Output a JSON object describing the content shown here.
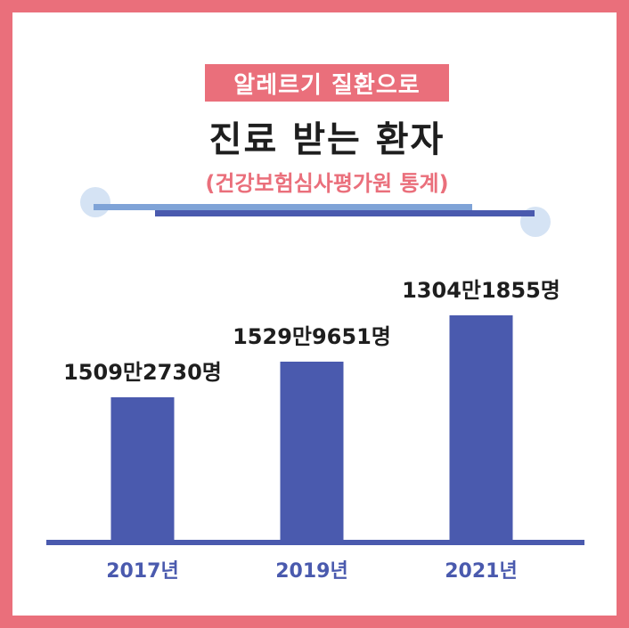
{
  "header": {
    "badge": "알레르기 질환으로",
    "title": "진료 받는 환자",
    "subtitle": "(건강보험심사평가원 통계)"
  },
  "colors": {
    "frame": "#ea6f7b",
    "bar": "#4a5aae",
    "deco_light": "#7fa3d7",
    "deco_circle": "#d5e3f4"
  },
  "chart_data": {
    "type": "bar",
    "categories": [
      "2017년",
      "2019년",
      "2021년"
    ],
    "values": [
      15092730,
      15299651,
      13041855
    ],
    "data_labels": [
      "1509만2730명",
      "1529만9651명",
      "1304만1855명"
    ],
    "ylim": [
      0,
      15299651
    ]
  }
}
